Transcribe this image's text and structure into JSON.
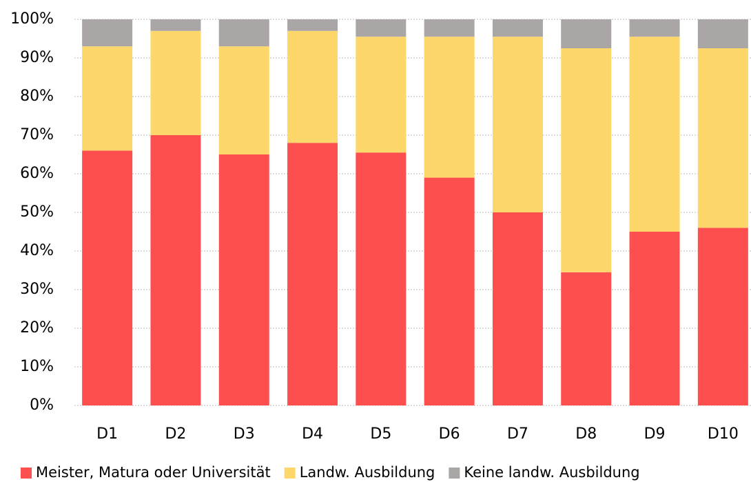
{
  "chart_data": {
    "type": "stacked_bar",
    "categories": [
      "D1",
      "D2",
      "D3",
      "D4",
      "D5",
      "D6",
      "D7",
      "D8",
      "D9",
      "D10"
    ],
    "series": [
      {
        "name": "Meister, Matura oder Universität",
        "color": "#fe4f4f",
        "values": [
          66,
          70,
          65,
          68,
          65.5,
          59,
          50,
          34.5,
          45,
          46
        ]
      },
      {
        "name": "Landw. Ausbildung",
        "color": "#fdd76a",
        "values": [
          27,
          27,
          28,
          29,
          30,
          36.5,
          45.5,
          58,
          50.5,
          46.5
        ]
      },
      {
        "name": "Keine landw. Ausbildung",
        "color": "#aba6a6",
        "values": [
          7,
          3,
          7,
          3,
          4.5,
          4.5,
          4.5,
          7.5,
          4.5,
          7.5
        ]
      }
    ],
    "ylim": [
      0,
      100
    ],
    "yticks": [
      {
        "value": 0,
        "label": "0%"
      },
      {
        "value": 10,
        "label": "10%"
      },
      {
        "value": 20,
        "label": "20%"
      },
      {
        "value": 30,
        "label": "30%"
      },
      {
        "value": 40,
        "label": "40%"
      },
      {
        "value": 50,
        "label": "50%"
      },
      {
        "value": 60,
        "label": "60%"
      },
      {
        "value": 70,
        "label": "70%"
      },
      {
        "value": 80,
        "label": "80%"
      },
      {
        "value": 90,
        "label": "90%"
      },
      {
        "value": 100,
        "label": "100%"
      }
    ],
    "grid": true,
    "legend": "bottom"
  }
}
